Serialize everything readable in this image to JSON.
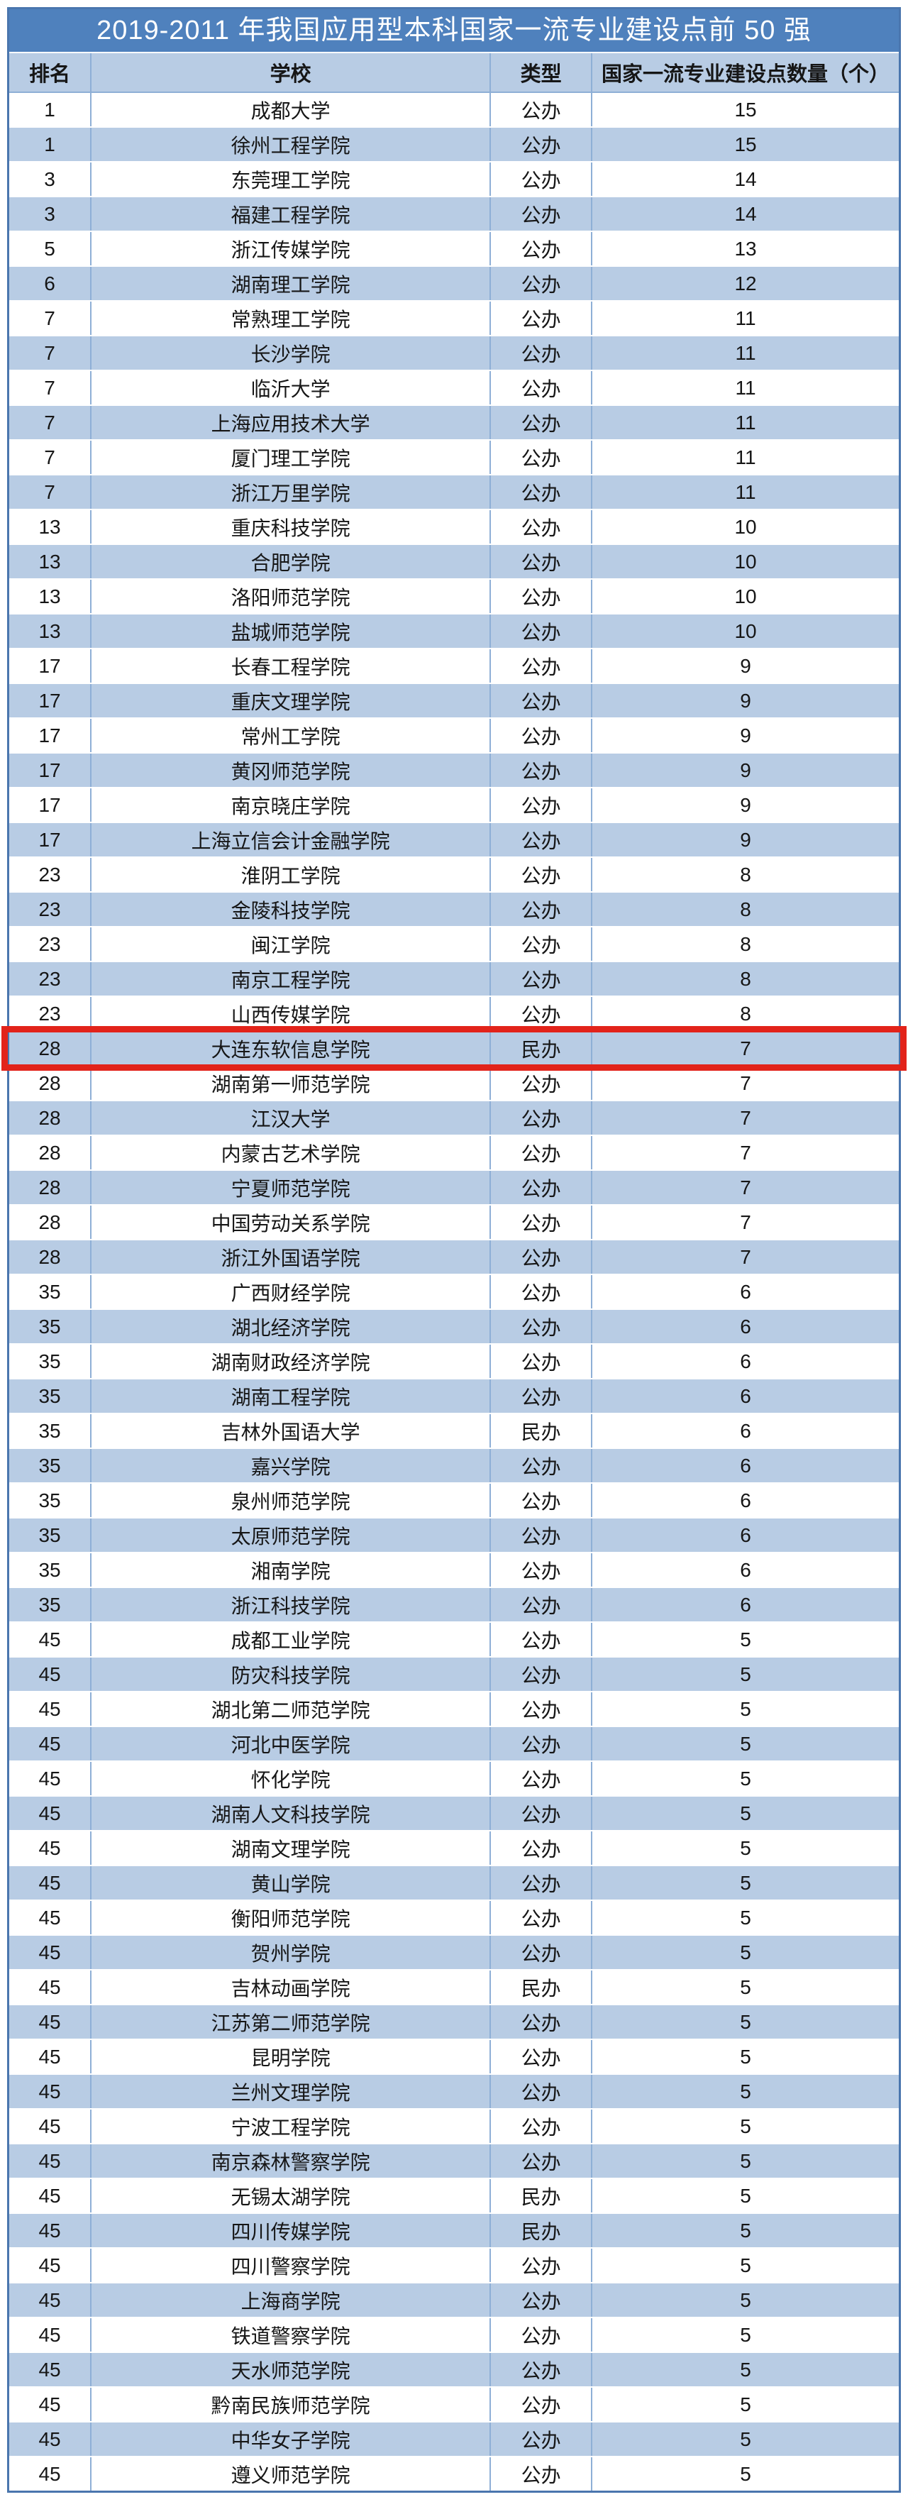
{
  "title": "2019-2011 年我国应用型本科国家一流专业建设点前 50 强",
  "header": {
    "rank": "排名",
    "school": "学校",
    "type": "类型",
    "count": "国家一流专业建设点数量（个）"
  },
  "highlight": {
    "school": "大连东软信息学院",
    "border_color": "#e2231a"
  },
  "colors": {
    "title_bg": "#4f81bd",
    "title_text": "#ffffff",
    "band_bg": "#b8cce4",
    "row_bg": "#ffffff",
    "grid_line": "#8eafd6",
    "outer_border": "#4a76ae",
    "text": "#161616",
    "highlight": "#e2231a"
  },
  "rows": [
    {
      "rank": "1",
      "school": "成都大学",
      "type": "公办",
      "count": "15"
    },
    {
      "rank": "1",
      "school": "徐州工程学院",
      "type": "公办",
      "count": "15"
    },
    {
      "rank": "3",
      "school": "东莞理工学院",
      "type": "公办",
      "count": "14"
    },
    {
      "rank": "3",
      "school": "福建工程学院",
      "type": "公办",
      "count": "14"
    },
    {
      "rank": "5",
      "school": "浙江传媒学院",
      "type": "公办",
      "count": "13"
    },
    {
      "rank": "6",
      "school": "湖南理工学院",
      "type": "公办",
      "count": "12"
    },
    {
      "rank": "7",
      "school": "常熟理工学院",
      "type": "公办",
      "count": "11"
    },
    {
      "rank": "7",
      "school": "长沙学院",
      "type": "公办",
      "count": "11"
    },
    {
      "rank": "7",
      "school": "临沂大学",
      "type": "公办",
      "count": "11"
    },
    {
      "rank": "7",
      "school": "上海应用技术大学",
      "type": "公办",
      "count": "11"
    },
    {
      "rank": "7",
      "school": "厦门理工学院",
      "type": "公办",
      "count": "11"
    },
    {
      "rank": "7",
      "school": "浙江万里学院",
      "type": "公办",
      "count": "11"
    },
    {
      "rank": "13",
      "school": "重庆科技学院",
      "type": "公办",
      "count": "10"
    },
    {
      "rank": "13",
      "school": "合肥学院",
      "type": "公办",
      "count": "10"
    },
    {
      "rank": "13",
      "school": "洛阳师范学院",
      "type": "公办",
      "count": "10"
    },
    {
      "rank": "13",
      "school": "盐城师范学院",
      "type": "公办",
      "count": "10"
    },
    {
      "rank": "17",
      "school": "长春工程学院",
      "type": "公办",
      "count": "9"
    },
    {
      "rank": "17",
      "school": "重庆文理学院",
      "type": "公办",
      "count": "9"
    },
    {
      "rank": "17",
      "school": "常州工学院",
      "type": "公办",
      "count": "9"
    },
    {
      "rank": "17",
      "school": "黄冈师范学院",
      "type": "公办",
      "count": "9"
    },
    {
      "rank": "17",
      "school": "南京晓庄学院",
      "type": "公办",
      "count": "9"
    },
    {
      "rank": "17",
      "school": "上海立信会计金融学院",
      "type": "公办",
      "count": "9"
    },
    {
      "rank": "23",
      "school": "淮阴工学院",
      "type": "公办",
      "count": "8"
    },
    {
      "rank": "23",
      "school": "金陵科技学院",
      "type": "公办",
      "count": "8"
    },
    {
      "rank": "23",
      "school": "闽江学院",
      "type": "公办",
      "count": "8"
    },
    {
      "rank": "23",
      "school": "南京工程学院",
      "type": "公办",
      "count": "8"
    },
    {
      "rank": "23",
      "school": "山西传媒学院",
      "type": "公办",
      "count": "8"
    },
    {
      "rank": "28",
      "school": "大连东软信息学院",
      "type": "民办",
      "count": "7",
      "highlight": true
    },
    {
      "rank": "28",
      "school": "湖南第一师范学院",
      "type": "公办",
      "count": "7"
    },
    {
      "rank": "28",
      "school": "江汉大学",
      "type": "公办",
      "count": "7"
    },
    {
      "rank": "28",
      "school": "内蒙古艺术学院",
      "type": "公办",
      "count": "7"
    },
    {
      "rank": "28",
      "school": "宁夏师范学院",
      "type": "公办",
      "count": "7"
    },
    {
      "rank": "28",
      "school": "中国劳动关系学院",
      "type": "公办",
      "count": "7"
    },
    {
      "rank": "28",
      "school": "浙江外国语学院",
      "type": "公办",
      "count": "7"
    },
    {
      "rank": "35",
      "school": "广西财经学院",
      "type": "公办",
      "count": "6"
    },
    {
      "rank": "35",
      "school": "湖北经济学院",
      "type": "公办",
      "count": "6"
    },
    {
      "rank": "35",
      "school": "湖南财政经济学院",
      "type": "公办",
      "count": "6"
    },
    {
      "rank": "35",
      "school": "湖南工程学院",
      "type": "公办",
      "count": "6"
    },
    {
      "rank": "35",
      "school": "吉林外国语大学",
      "type": "民办",
      "count": "6"
    },
    {
      "rank": "35",
      "school": "嘉兴学院",
      "type": "公办",
      "count": "6"
    },
    {
      "rank": "35",
      "school": "泉州师范学院",
      "type": "公办",
      "count": "6"
    },
    {
      "rank": "35",
      "school": "太原师范学院",
      "type": "公办",
      "count": "6"
    },
    {
      "rank": "35",
      "school": "湘南学院",
      "type": "公办",
      "count": "6"
    },
    {
      "rank": "35",
      "school": "浙江科技学院",
      "type": "公办",
      "count": "6"
    },
    {
      "rank": "45",
      "school": "成都工业学院",
      "type": "公办",
      "count": "5"
    },
    {
      "rank": "45",
      "school": "防灾科技学院",
      "type": "公办",
      "count": "5"
    },
    {
      "rank": "45",
      "school": "湖北第二师范学院",
      "type": "公办",
      "count": "5"
    },
    {
      "rank": "45",
      "school": "河北中医学院",
      "type": "公办",
      "count": "5"
    },
    {
      "rank": "45",
      "school": "怀化学院",
      "type": "公办",
      "count": "5"
    },
    {
      "rank": "45",
      "school": "湖南人文科技学院",
      "type": "公办",
      "count": "5"
    },
    {
      "rank": "45",
      "school": "湖南文理学院",
      "type": "公办",
      "count": "5"
    },
    {
      "rank": "45",
      "school": "黄山学院",
      "type": "公办",
      "count": "5"
    },
    {
      "rank": "45",
      "school": "衡阳师范学院",
      "type": "公办",
      "count": "5"
    },
    {
      "rank": "45",
      "school": "贺州学院",
      "type": "公办",
      "count": "5"
    },
    {
      "rank": "45",
      "school": "吉林动画学院",
      "type": "民办",
      "count": "5"
    },
    {
      "rank": "45",
      "school": "江苏第二师范学院",
      "type": "公办",
      "count": "5"
    },
    {
      "rank": "45",
      "school": "昆明学院",
      "type": "公办",
      "count": "5"
    },
    {
      "rank": "45",
      "school": "兰州文理学院",
      "type": "公办",
      "count": "5"
    },
    {
      "rank": "45",
      "school": "宁波工程学院",
      "type": "公办",
      "count": "5"
    },
    {
      "rank": "45",
      "school": "南京森林警察学院",
      "type": "公办",
      "count": "5"
    },
    {
      "rank": "45",
      "school": "无锡太湖学院",
      "type": "民办",
      "count": "5"
    },
    {
      "rank": "45",
      "school": "四川传媒学院",
      "type": "民办",
      "count": "5"
    },
    {
      "rank": "45",
      "school": "四川警察学院",
      "type": "公办",
      "count": "5"
    },
    {
      "rank": "45",
      "school": "上海商学院",
      "type": "公办",
      "count": "5"
    },
    {
      "rank": "45",
      "school": "铁道警察学院",
      "type": "公办",
      "count": "5"
    },
    {
      "rank": "45",
      "school": "天水师范学院",
      "type": "公办",
      "count": "5"
    },
    {
      "rank": "45",
      "school": "黔南民族师范学院",
      "type": "公办",
      "count": "5"
    },
    {
      "rank": "45",
      "school": "中华女子学院",
      "type": "公办",
      "count": "5"
    },
    {
      "rank": "45",
      "school": "遵义师范学院",
      "type": "公办",
      "count": "5"
    }
  ]
}
